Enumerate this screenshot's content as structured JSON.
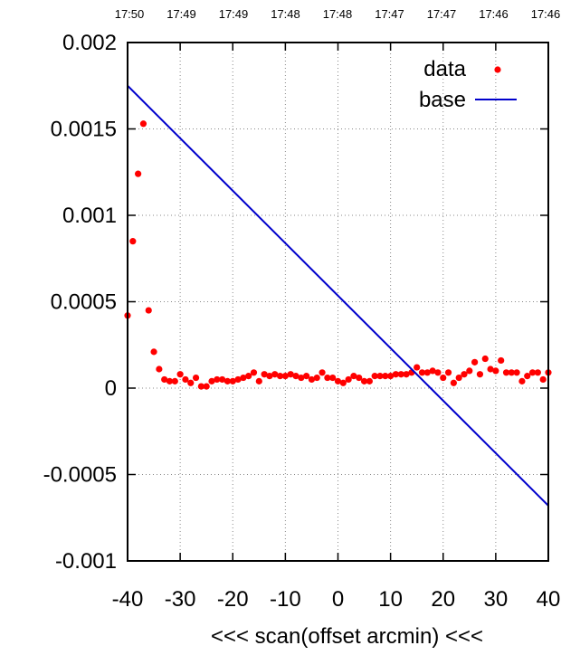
{
  "chart_data": {
    "type": "scatter",
    "xlabel": "<<< scan(offset arcmin) <<<",
    "ylabel": "",
    "xlim": [
      -40,
      40
    ],
    "ylim": [
      -0.001,
      0.002
    ],
    "x_ticks": [
      -40,
      -30,
      -20,
      -10,
      0,
      10,
      20,
      30,
      40
    ],
    "x_tick_labels": [
      "-40",
      "-30",
      "-20",
      "-10",
      "0",
      "10",
      "20",
      "30",
      "40"
    ],
    "y_ticks": [
      -0.001,
      -0.0005,
      0,
      0.0005,
      0.001,
      0.0015,
      0.002
    ],
    "y_tick_labels": [
      "-0.001",
      "-0.0005",
      "0",
      "0.0005",
      "0.001",
      "0.0015",
      "0.002"
    ],
    "top_axis_labels": [
      "17:50",
      "17:49",
      "17:49",
      "17:48",
      "17:48",
      "17:47",
      "17:47",
      "17:46",
      "17:46"
    ],
    "grid": true,
    "legend_position": "top-right",
    "colors": {
      "data": "#ff0000",
      "base": "#0000cc",
      "frame": "#000000",
      "grid": "#888888"
    },
    "series": [
      {
        "name": "data",
        "style": "points",
        "x": [
          -40,
          -39,
          -38,
          -37,
          -36,
          -35,
          -34,
          -33,
          -32,
          -31,
          -30,
          -29,
          -28,
          -27,
          -26,
          -25,
          -24,
          -23,
          -22,
          -21,
          -20,
          -19,
          -18,
          -17,
          -16,
          -15,
          -14,
          -13,
          -12,
          -11,
          -10,
          -9,
          -8,
          -7,
          -6,
          -5,
          -4,
          -3,
          -2,
          -1,
          0,
          1,
          2,
          3,
          4,
          5,
          6,
          7,
          8,
          9,
          10,
          11,
          12,
          13,
          14,
          15,
          16,
          17,
          18,
          19,
          20,
          21,
          22,
          23,
          24,
          25,
          26,
          27,
          28,
          29,
          30,
          31,
          32,
          33,
          34,
          35,
          36,
          37,
          38,
          39,
          40
        ],
        "y": [
          0.00042,
          0.00085,
          0.00124,
          0.00153,
          0.00045,
          0.00021,
          0.00011,
          5e-05,
          4e-05,
          4e-05,
          8e-05,
          5e-05,
          3e-05,
          6e-05,
          1e-05,
          1e-05,
          4e-05,
          5e-05,
          5e-05,
          4e-05,
          4e-05,
          5e-05,
          6e-05,
          7e-05,
          9e-05,
          4e-05,
          8e-05,
          7e-05,
          8e-05,
          7e-05,
          7e-05,
          8e-05,
          7e-05,
          6e-05,
          7e-05,
          5e-05,
          6e-05,
          9e-05,
          6e-05,
          6e-05,
          4e-05,
          3e-05,
          5e-05,
          7e-05,
          6e-05,
          4e-05,
          4e-05,
          7e-05,
          7e-05,
          7e-05,
          7e-05,
          8e-05,
          8e-05,
          8e-05,
          9e-05,
          0.00012,
          9e-05,
          9e-05,
          0.0001,
          9e-05,
          6e-05,
          9e-05,
          3e-05,
          6e-05,
          8e-05,
          0.0001,
          0.00015,
          8e-05,
          0.00017,
          0.00011,
          0.0001,
          0.00016,
          9e-05,
          9e-05,
          9e-05,
          4e-05,
          7e-05,
          9e-05,
          9e-05,
          5e-05,
          9e-05
        ]
      },
      {
        "name": "base",
        "style": "line",
        "x": [
          -40,
          40
        ],
        "y": [
          0.00175,
          -0.00068
        ]
      }
    ]
  }
}
